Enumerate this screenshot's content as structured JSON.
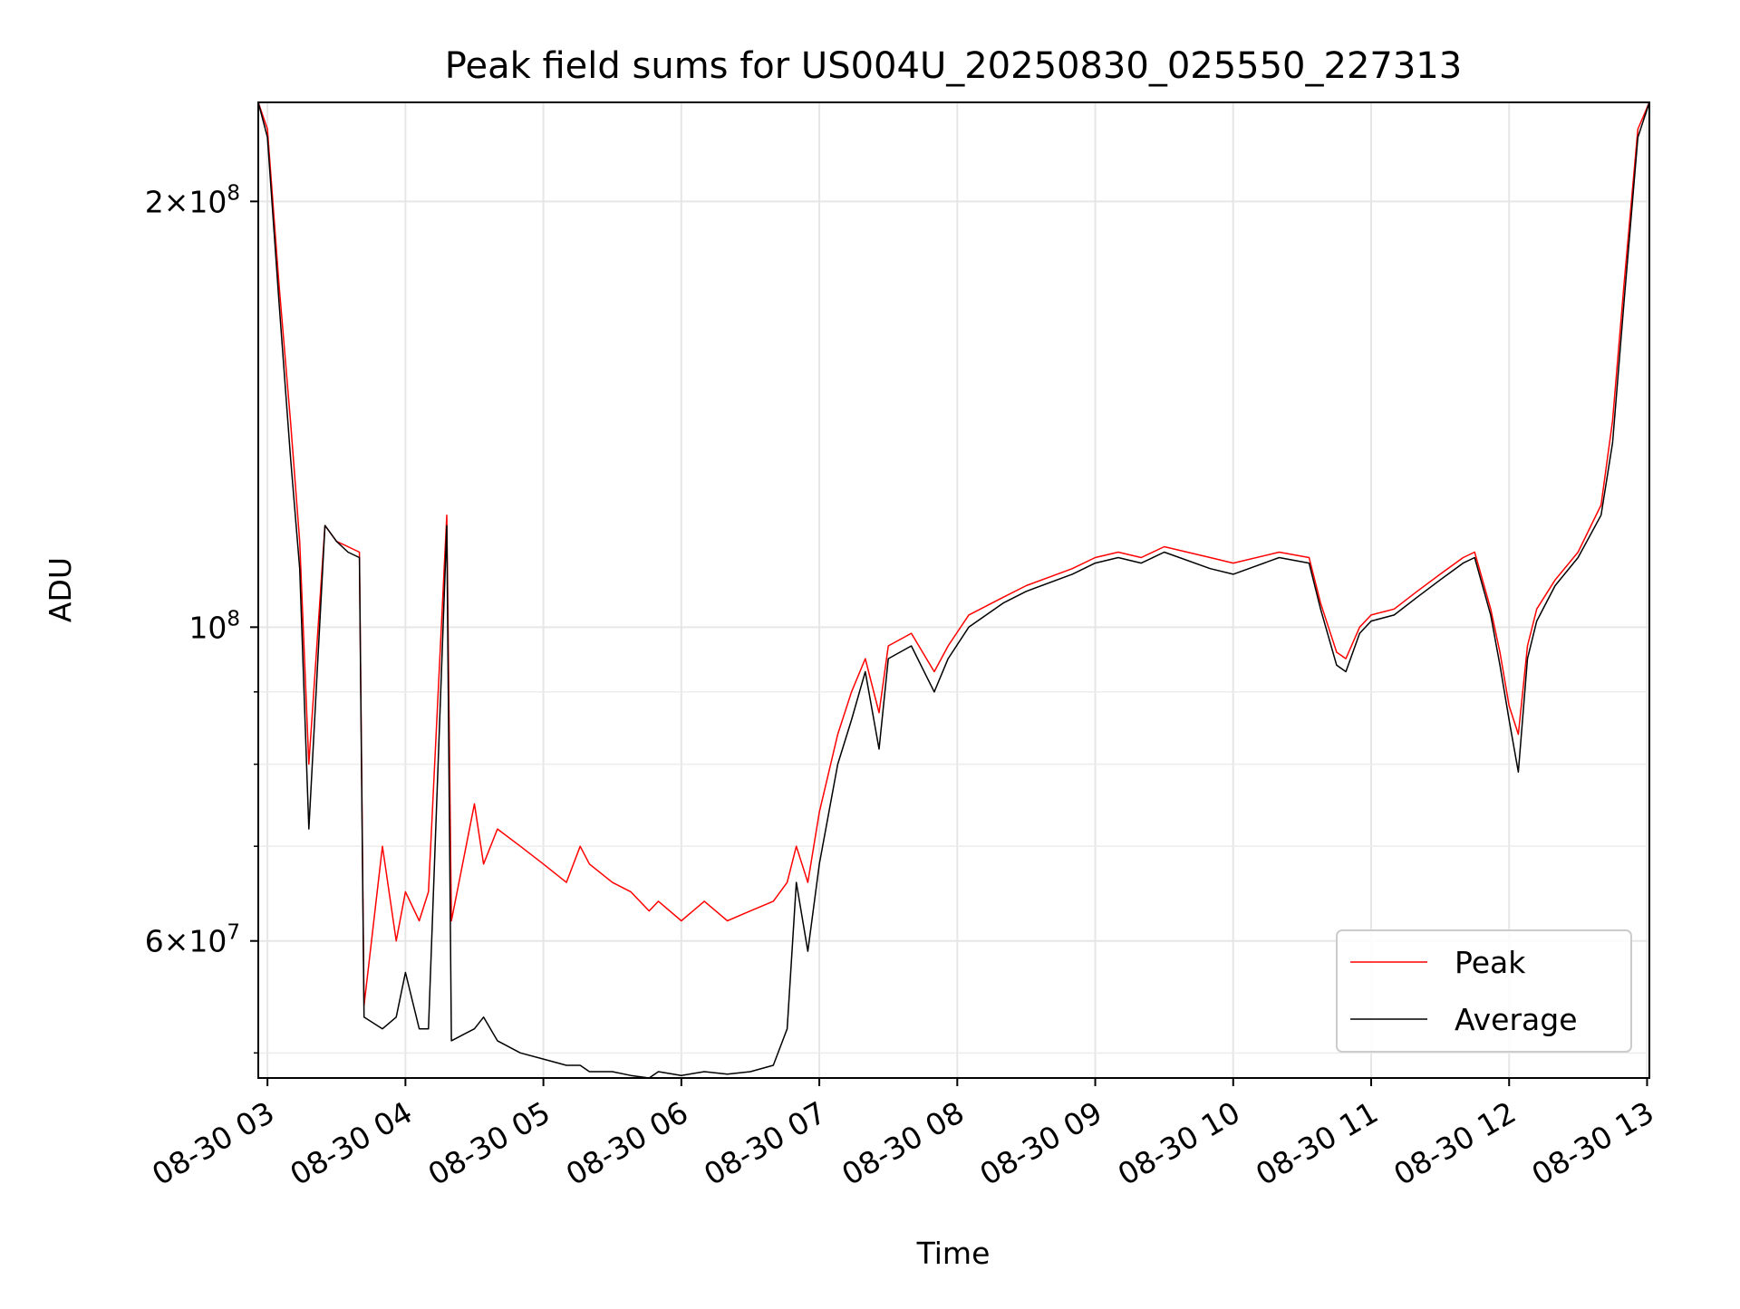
{
  "chart_data": {
    "type": "line",
    "title": "Peak field sums for US004U_20250830_025550_227313",
    "xlabel": "Time",
    "ylabel": "ADU",
    "y_scale": "log",
    "ylim": [
      48000000,
      235000000
    ],
    "xlim": [
      "2025-08-30 02:56",
      "2025-08-30 13:01"
    ],
    "grid": true,
    "legend": {
      "placement": "lower right",
      "entries": [
        "Peak",
        "Average"
      ]
    },
    "x_ticks": [
      {
        "value": "2025-08-30 03:00",
        "label": "08-30 03"
      },
      {
        "value": "2025-08-30 04:00",
        "label": "08-30 04"
      },
      {
        "value": "2025-08-30 05:00",
        "label": "08-30 05"
      },
      {
        "value": "2025-08-30 06:00",
        "label": "08-30 06"
      },
      {
        "value": "2025-08-30 07:00",
        "label": "08-30 07"
      },
      {
        "value": "2025-08-30 08:00",
        "label": "08-30 08"
      },
      {
        "value": "2025-08-30 09:00",
        "label": "08-30 09"
      },
      {
        "value": "2025-08-30 10:00",
        "label": "08-30 10"
      },
      {
        "value": "2025-08-30 11:00",
        "label": "08-30 11"
      },
      {
        "value": "2025-08-30 12:00",
        "label": "08-30 12"
      },
      {
        "value": "2025-08-30 13:00",
        "label": "08-30 13"
      }
    ],
    "y_major_ticks": [
      {
        "value": 60000000,
        "mantissa": "6",
        "base": "10",
        "exponent": "7"
      },
      {
        "value": 100000000,
        "mantissa": "",
        "base": "10",
        "exponent": "8"
      },
      {
        "value": 200000000,
        "mantissa": "2",
        "base": "10",
        "exponent": "8"
      }
    ],
    "y_minor_ticks": [
      50000000,
      70000000,
      80000000,
      90000000,
      300000000
    ],
    "series": [
      {
        "name": "Peak",
        "color": "#ff0000",
        "x": [
          "2025-08-30 02:56",
          "2025-08-30 03:00",
          "2025-08-30 03:05",
          "2025-08-30 03:10",
          "2025-08-30 03:14",
          "2025-08-30 03:18",
          "2025-08-30 03:25",
          "2025-08-30 03:30",
          "2025-08-30 03:35",
          "2025-08-30 03:40",
          "2025-08-30 03:42",
          "2025-08-30 03:50",
          "2025-08-30 03:56",
          "2025-08-30 04:00",
          "2025-08-30 04:06",
          "2025-08-30 04:10",
          "2025-08-30 04:18",
          "2025-08-30 04:20",
          "2025-08-30 04:30",
          "2025-08-30 04:34",
          "2025-08-30 04:40",
          "2025-08-30 04:50",
          "2025-08-30 05:00",
          "2025-08-30 05:10",
          "2025-08-30 05:16",
          "2025-08-30 05:20",
          "2025-08-30 05:30",
          "2025-08-30 05:38",
          "2025-08-30 05:46",
          "2025-08-30 05:50",
          "2025-08-30 06:00",
          "2025-08-30 06:10",
          "2025-08-30 06:20",
          "2025-08-30 06:30",
          "2025-08-30 06:40",
          "2025-08-30 06:46",
          "2025-08-30 06:50",
          "2025-08-30 06:55",
          "2025-08-30 07:00",
          "2025-08-30 07:08",
          "2025-08-30 07:14",
          "2025-08-30 07:20",
          "2025-08-30 07:26",
          "2025-08-30 07:30",
          "2025-08-30 07:40",
          "2025-08-30 07:50",
          "2025-08-30 07:56",
          "2025-08-30 08:05",
          "2025-08-30 08:20",
          "2025-08-30 08:30",
          "2025-08-30 08:50",
          "2025-08-30 09:00",
          "2025-08-30 09:10",
          "2025-08-30 09:20",
          "2025-08-30 09:30",
          "2025-08-30 09:50",
          "2025-08-30 10:00",
          "2025-08-30 10:20",
          "2025-08-30 10:33",
          "2025-08-30 10:38",
          "2025-08-30 10:45",
          "2025-08-30 10:49",
          "2025-08-30 10:55",
          "2025-08-30 11:00",
          "2025-08-30 11:10",
          "2025-08-30 11:20",
          "2025-08-30 11:30",
          "2025-08-30 11:40",
          "2025-08-30 11:45",
          "2025-08-30 11:52",
          "2025-08-30 11:56",
          "2025-08-30 12:00",
          "2025-08-30 12:04",
          "2025-08-30 12:08",
          "2025-08-30 12:12",
          "2025-08-30 12:20",
          "2025-08-30 12:30",
          "2025-08-30 12:40",
          "2025-08-30 12:45",
          "2025-08-30 12:50",
          "2025-08-30 12:56",
          "2025-08-30 13:01"
        ],
        "values": [
          235000000,
          225000000,
          175000000,
          140000000,
          115000000,
          80000000,
          118000000,
          115000000,
          114000000,
          113000000,
          54000000,
          70000000,
          60000000,
          65000000,
          62000000,
          65000000,
          120000000,
          62000000,
          75000000,
          68000000,
          72000000,
          70000000,
          68000000,
          66000000,
          70000000,
          68000000,
          66000000,
          65000000,
          63000000,
          64000000,
          62000000,
          64000000,
          62000000,
          63000000,
          64000000,
          66000000,
          70000000,
          66000000,
          74000000,
          84000000,
          90000000,
          95000000,
          87000000,
          97000000,
          99000000,
          93000000,
          97000000,
          102000000,
          105000000,
          107000000,
          110000000,
          112000000,
          113000000,
          112000000,
          114000000,
          112000000,
          111000000,
          113000000,
          112000000,
          104000000,
          96000000,
          95000000,
          100000000,
          102000000,
          103000000,
          106000000,
          109000000,
          112000000,
          113000000,
          103000000,
          96000000,
          88000000,
          84000000,
          97000000,
          103000000,
          108000000,
          113000000,
          122000000,
          140000000,
          175000000,
          225000000,
          235000000
        ]
      },
      {
        "name": "Average",
        "color": "#000000",
        "x": [
          "2025-08-30 02:56",
          "2025-08-30 03:00",
          "2025-08-30 03:05",
          "2025-08-30 03:10",
          "2025-08-30 03:14",
          "2025-08-30 03:18",
          "2025-08-30 03:25",
          "2025-08-30 03:30",
          "2025-08-30 03:35",
          "2025-08-30 03:40",
          "2025-08-30 03:42",
          "2025-08-30 03:50",
          "2025-08-30 03:56",
          "2025-08-30 04:00",
          "2025-08-30 04:06",
          "2025-08-30 04:10",
          "2025-08-30 04:18",
          "2025-08-30 04:20",
          "2025-08-30 04:30",
          "2025-08-30 04:34",
          "2025-08-30 04:40",
          "2025-08-30 04:50",
          "2025-08-30 05:00",
          "2025-08-30 05:10",
          "2025-08-30 05:16",
          "2025-08-30 05:20",
          "2025-08-30 05:30",
          "2025-08-30 05:38",
          "2025-08-30 05:46",
          "2025-08-30 05:50",
          "2025-08-30 06:00",
          "2025-08-30 06:10",
          "2025-08-30 06:20",
          "2025-08-30 06:30",
          "2025-08-30 06:40",
          "2025-08-30 06:46",
          "2025-08-30 06:50",
          "2025-08-30 06:55",
          "2025-08-30 07:00",
          "2025-08-30 07:08",
          "2025-08-30 07:14",
          "2025-08-30 07:20",
          "2025-08-30 07:26",
          "2025-08-30 07:30",
          "2025-08-30 07:40",
          "2025-08-30 07:50",
          "2025-08-30 07:56",
          "2025-08-30 08:05",
          "2025-08-30 08:20",
          "2025-08-30 08:30",
          "2025-08-30 08:50",
          "2025-08-30 09:00",
          "2025-08-30 09:10",
          "2025-08-30 09:20",
          "2025-08-30 09:30",
          "2025-08-30 09:50",
          "2025-08-30 10:00",
          "2025-08-30 10:20",
          "2025-08-30 10:33",
          "2025-08-30 10:38",
          "2025-08-30 10:45",
          "2025-08-30 10:49",
          "2025-08-30 10:55",
          "2025-08-30 11:00",
          "2025-08-30 11:10",
          "2025-08-30 11:20",
          "2025-08-30 11:30",
          "2025-08-30 11:40",
          "2025-08-30 11:45",
          "2025-08-30 11:52",
          "2025-08-30 11:56",
          "2025-08-30 12:00",
          "2025-08-30 12:04",
          "2025-08-30 12:08",
          "2025-08-30 12:12",
          "2025-08-30 12:20",
          "2025-08-30 12:30",
          "2025-08-30 12:40",
          "2025-08-30 12:45",
          "2025-08-30 12:50",
          "2025-08-30 12:56",
          "2025-08-30 13:01"
        ],
        "values": [
          235000000,
          222000000,
          170000000,
          132000000,
          110000000,
          72000000,
          118000000,
          115000000,
          113000000,
          112000000,
          53000000,
          52000000,
          53000000,
          57000000,
          52000000,
          52000000,
          118000000,
          51000000,
          52000000,
          53000000,
          51000000,
          50000000,
          49500000,
          49000000,
          49000000,
          48500000,
          48500000,
          48200000,
          48000000,
          48500000,
          48200000,
          48500000,
          48300000,
          48500000,
          49000000,
          52000000,
          66000000,
          59000000,
          68000000,
          80000000,
          86000000,
          93000000,
          82000000,
          95000000,
          97000000,
          90000000,
          95000000,
          100000000,
          104000000,
          106000000,
          109000000,
          111000000,
          112000000,
          111000000,
          113000000,
          110000000,
          109000000,
          112000000,
          111000000,
          103000000,
          94000000,
          93000000,
          99000000,
          101000000,
          102000000,
          105000000,
          108000000,
          111000000,
          112000000,
          102000000,
          94000000,
          86000000,
          79000000,
          95000000,
          101000000,
          107000000,
          112000000,
          120000000,
          135000000,
          170000000,
          222000000,
          235000000
        ]
      }
    ]
  }
}
